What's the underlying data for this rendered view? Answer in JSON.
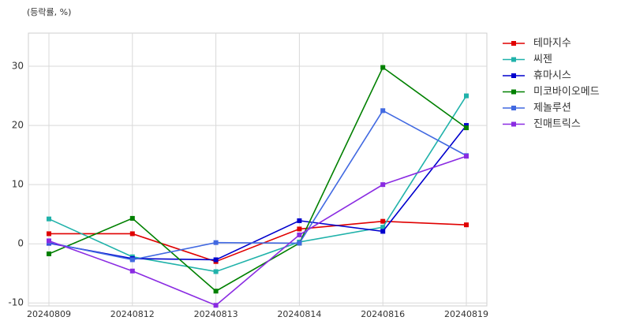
{
  "chart_data": {
    "type": "line",
    "ylabel": "(등락률, %)",
    "categories": [
      "20240809",
      "20240812",
      "20240813",
      "20240814",
      "20240816",
      "20240819"
    ],
    "series": [
      {
        "name": "테마지수",
        "color": "#e00000",
        "values": [
          1.7,
          1.7,
          -3.0,
          2.5,
          3.8,
          3.2
        ]
      },
      {
        "name": "씨젠",
        "color": "#20b2aa",
        "values": [
          4.2,
          -2.2,
          -4.7,
          0.3,
          2.8,
          25.0
        ]
      },
      {
        "name": "휴마시스",
        "color": "#0000cd",
        "values": [
          0.1,
          -2.5,
          -2.7,
          3.9,
          2.1,
          20.0
        ]
      },
      {
        "name": "미코바이오메드",
        "color": "#008000",
        "values": [
          -1.7,
          4.3,
          -8.0,
          0.1,
          29.8,
          19.6
        ]
      },
      {
        "name": "제놀루션",
        "color": "#4169e1",
        "values": [
          0.2,
          -2.7,
          0.2,
          0.1,
          22.5,
          14.9
        ]
      },
      {
        "name": "진매트릭스",
        "color": "#8a2be2",
        "values": [
          0.5,
          -4.6,
          -10.4,
          1.5,
          10.0,
          14.8
        ]
      }
    ],
    "ylim": [
      -10.5,
      35.6
    ],
    "yticks": [
      -10,
      0,
      10,
      20,
      30
    ],
    "grid": true,
    "legend": "right"
  }
}
